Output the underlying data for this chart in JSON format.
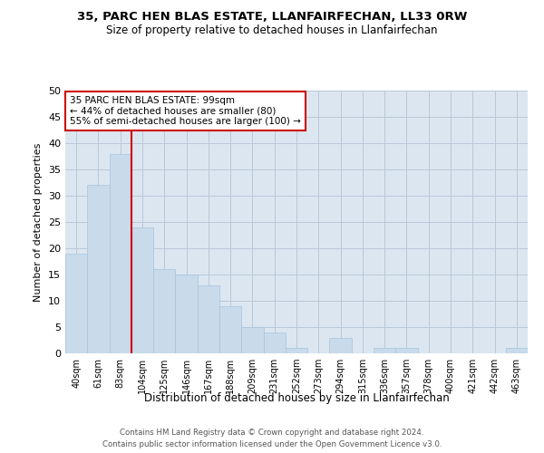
{
  "title": "35, PARC HEN BLAS ESTATE, LLANFAIRFECHAN, LL33 0RW",
  "subtitle": "Size of property relative to detached houses in Llanfairfechan",
  "xlabel": "Distribution of detached houses by size in Llanfairfechan",
  "ylabel": "Number of detached properties",
  "categories": [
    "40sqm",
    "61sqm",
    "83sqm",
    "104sqm",
    "125sqm",
    "146sqm",
    "167sqm",
    "188sqm",
    "209sqm",
    "231sqm",
    "252sqm",
    "273sqm",
    "294sqm",
    "315sqm",
    "336sqm",
    "357sqm",
    "378sqm",
    "400sqm",
    "421sqm",
    "442sqm",
    "463sqm"
  ],
  "values": [
    19,
    32,
    38,
    24,
    16,
    15,
    13,
    9,
    5,
    4,
    1,
    0,
    3,
    0,
    1,
    1,
    0,
    0,
    0,
    0,
    1
  ],
  "bar_color": "#c9daea",
  "bar_edge_color": "#a8c4dc",
  "background_color": "#ffffff",
  "plot_bg_color": "#dce6f0",
  "grid_color": "#b8c8d8",
  "annotation_text": "35 PARC HEN BLAS ESTATE: 99sqm\n← 44% of detached houses are smaller (80)\n55% of semi-detached houses are larger (100) →",
  "annotation_box_color": "#ffffff",
  "annotation_box_edge": "#cc0000",
  "vline_color": "#cc0000",
  "ylim": [
    0,
    50
  ],
  "yticks": [
    0,
    5,
    10,
    15,
    20,
    25,
    30,
    35,
    40,
    45,
    50
  ],
  "footer1": "Contains HM Land Registry data © Crown copyright and database right 2024.",
  "footer2": "Contains public sector information licensed under the Open Government Licence v3.0."
}
